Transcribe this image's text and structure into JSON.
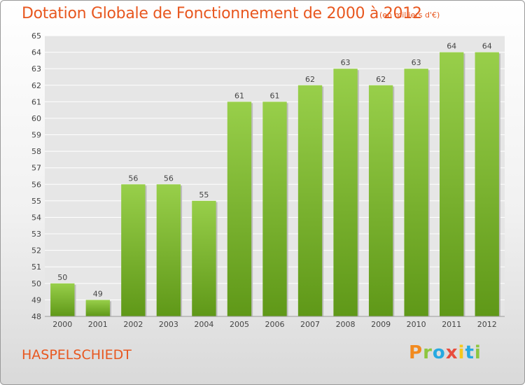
{
  "chart_data": {
    "type": "bar",
    "title": "Dotation Globale de Fonctionnement de 2000 à 2012",
    "unit_note": "(en milliers d'€)",
    "categories": [
      "2000",
      "2001",
      "2002",
      "2003",
      "2004",
      "2005",
      "2006",
      "2007",
      "2008",
      "2009",
      "2010",
      "2011",
      "2012"
    ],
    "values": [
      50,
      49,
      56,
      56,
      55,
      61,
      61,
      62,
      63,
      62,
      63,
      64,
      64
    ],
    "ylim": [
      48,
      65
    ],
    "yticks": [
      48,
      49,
      50,
      51,
      52,
      53,
      54,
      55,
      56,
      57,
      58,
      59,
      60,
      61,
      62,
      63,
      64,
      65
    ],
    "xlabel": "",
    "ylabel": "",
    "grid": true,
    "bar_color_top": "#98cf4a",
    "bar_color_bottom": "#5f9818",
    "accent_color": "#e8571f"
  },
  "footer": {
    "commune": "HASPELSCHIEDT",
    "logo_letters": [
      "P",
      "r",
      "o",
      "x",
      "i",
      "t",
      "i"
    ],
    "logo_colors": [
      "#f28a1f",
      "#8dc63f",
      "#27a9e1",
      "#e84c3d",
      "#f7c81e",
      "#27a9e1",
      "#8dc63f"
    ]
  }
}
